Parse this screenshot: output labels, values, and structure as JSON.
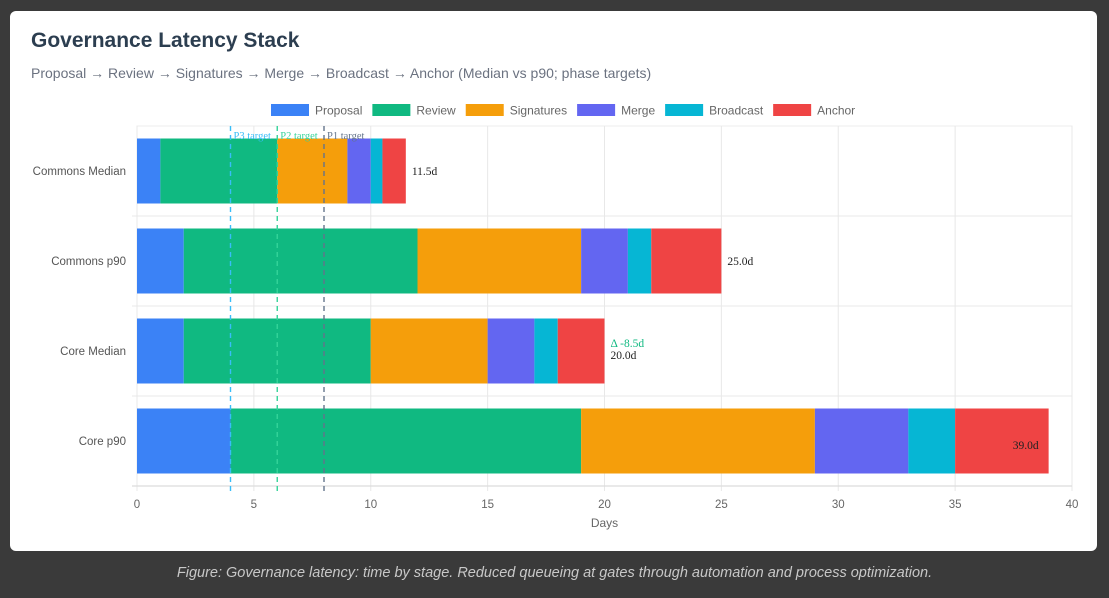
{
  "header": {
    "title": "Governance Latency Stack",
    "subtitle": "Proposal → Review → Signatures → Merge → Broadcast → Anchor (Median vs p90; phase targets)"
  },
  "caption": "Figure: Governance latency: time by stage. Reduced queueing at gates through automation and process optimization.",
  "chart_data": {
    "type": "bar",
    "orientation": "horizontal",
    "stacked": true,
    "title": "Governance Latency Stack",
    "xlabel": "Days",
    "ylabel": "",
    "xlim": [
      0,
      40
    ],
    "xticks": [
      0,
      5,
      10,
      15,
      20,
      25,
      30,
      35,
      40
    ],
    "grid": true,
    "legend_position": "top-center",
    "categories": [
      "Commons Median",
      "Commons p90",
      "Core Median",
      "Core p90"
    ],
    "series": [
      {
        "name": "Proposal",
        "color": "#3b82f6",
        "values": [
          1,
          2,
          2,
          4
        ]
      },
      {
        "name": "Review",
        "color": "#10b981",
        "values": [
          5,
          10,
          8,
          15
        ]
      },
      {
        "name": "Signatures",
        "color": "#f59e0b",
        "values": [
          3,
          7,
          5,
          10
        ]
      },
      {
        "name": "Merge",
        "color": "#6366f1",
        "values": [
          1,
          2,
          2,
          4
        ]
      },
      {
        "name": "Broadcast",
        "color": "#06b6d4",
        "values": [
          0.5,
          1,
          1,
          2
        ]
      },
      {
        "name": "Anchor",
        "color": "#ef4444",
        "values": [
          1,
          3,
          2,
          4
        ]
      }
    ],
    "totals": [
      "11.5d",
      "25.0d",
      "20.0d",
      "39.0d"
    ],
    "annotations": [
      {
        "category": "Core Median",
        "text": "Δ -8.5d",
        "color": "#10b981"
      }
    ],
    "target_lines": [
      {
        "label": "P3 target",
        "value": 4,
        "color": "#38bdf8"
      },
      {
        "label": "P2 target",
        "value": 6,
        "color": "#34d399"
      },
      {
        "label": "P1 target",
        "value": 8,
        "color": "#64748b"
      }
    ]
  }
}
